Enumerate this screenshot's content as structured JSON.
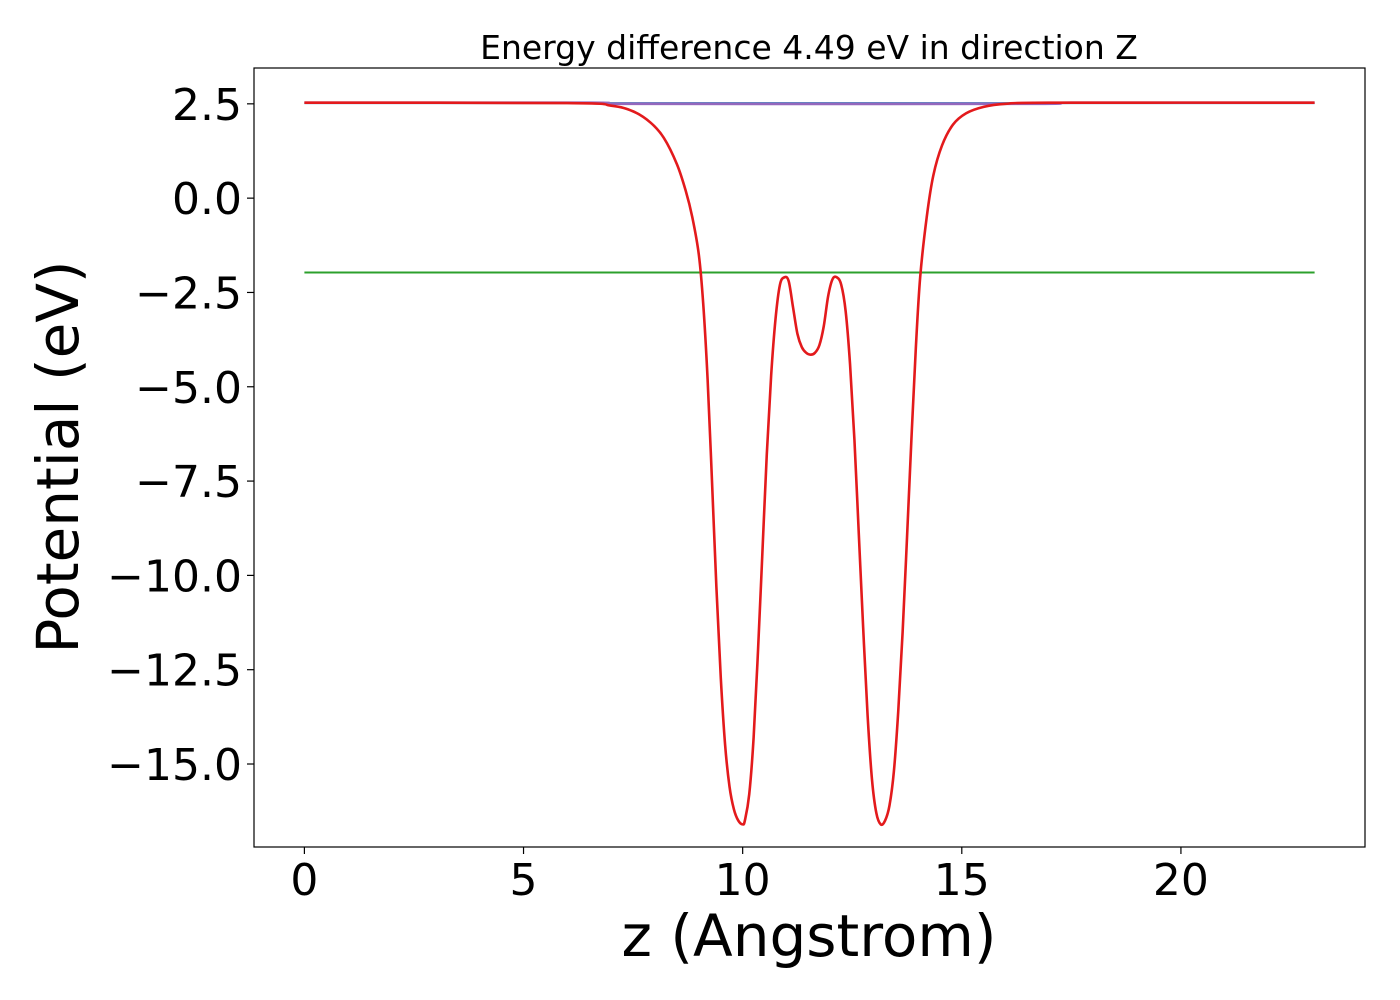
{
  "chart_data": {
    "type": "line",
    "title": "Energy difference 4.49 eV in direction Z",
    "xlabel": "z (Angstrom)",
    "ylabel": "Potential (eV)",
    "xlim": [
      -1.15,
      24.2
    ],
    "ylim": [
      -17.2,
      3.45
    ],
    "xticks": [
      0,
      5,
      10,
      15,
      20
    ],
    "xtick_labels": [
      "0",
      "5",
      "10",
      "15",
      "20"
    ],
    "yticks": [
      2.5,
      0.0,
      -2.5,
      -5.0,
      -7.5,
      -10.0,
      -12.5,
      -15.0
    ],
    "ytick_labels": [
      "2.5",
      "0.0",
      "−2.5",
      "−5.0",
      "−7.5",
      "−10.0",
      "−12.5",
      "−15.0"
    ],
    "grid": false,
    "series": [
      {
        "color": "#1f77b4",
        "style": "hline",
        "x": [
          0,
          23.05
        ],
        "y": [
          2.52,
          2.52
        ]
      },
      {
        "color": "#2ca02c",
        "style": "hline",
        "x": [
          0,
          23.05
        ],
        "y": [
          -1.97,
          -1.97
        ]
      },
      {
        "color": "#9467bd",
        "style": "curve",
        "x": [
          0,
          6.5,
          7.5,
          16.5,
          17.5,
          23.05
        ],
        "y": [
          2.53,
          2.53,
          2.5,
          2.5,
          2.53,
          2.53
        ]
      },
      {
        "color": "#e31a1c",
        "style": "curve",
        "x": [
          0,
          6.0,
          7.0,
          7.5,
          7.9,
          8.2,
          8.5,
          8.7,
          8.85,
          9.0,
          9.1,
          9.2,
          9.3,
          9.4,
          9.5,
          9.6,
          9.7,
          9.8,
          9.9,
          10.0,
          10.05,
          10.15,
          10.25,
          10.35,
          10.45,
          10.55,
          10.65,
          10.75,
          10.85,
          10.95,
          11.05,
          11.15,
          11.25,
          11.35,
          11.45,
          11.55,
          11.65,
          11.75,
          11.85,
          11.95,
          12.05,
          12.15,
          12.25,
          12.35,
          12.45,
          12.55,
          12.65,
          12.75,
          12.85,
          12.95,
          13.05,
          13.15,
          13.25,
          13.35,
          13.45,
          13.55,
          13.65,
          13.75,
          13.85,
          13.95,
          14.05,
          14.2,
          14.35,
          14.55,
          14.8,
          15.1,
          15.5,
          16.0,
          17.0,
          23.05
        ],
        "y": [
          2.53,
          2.52,
          2.45,
          2.3,
          2.0,
          1.6,
          0.9,
          0.2,
          -0.5,
          -1.5,
          -2.8,
          -4.8,
          -7.5,
          -10.3,
          -12.7,
          -14.5,
          -15.6,
          -16.2,
          -16.5,
          -16.6,
          -16.5,
          -15.8,
          -14.3,
          -12.0,
          -9.4,
          -6.8,
          -4.7,
          -3.2,
          -2.3,
          -2.1,
          -2.2,
          -2.9,
          -3.6,
          -3.95,
          -4.1,
          -4.15,
          -4.1,
          -3.9,
          -3.4,
          -2.6,
          -2.15,
          -2.1,
          -2.3,
          -3.0,
          -4.4,
          -6.4,
          -8.9,
          -11.4,
          -13.7,
          -15.4,
          -16.3,
          -16.6,
          -16.5,
          -16.1,
          -15.2,
          -13.6,
          -11.5,
          -9.0,
          -6.4,
          -4.0,
          -2.1,
          -0.5,
          0.6,
          1.4,
          1.95,
          2.25,
          2.42,
          2.5,
          2.53,
          2.53
        ]
      }
    ]
  }
}
